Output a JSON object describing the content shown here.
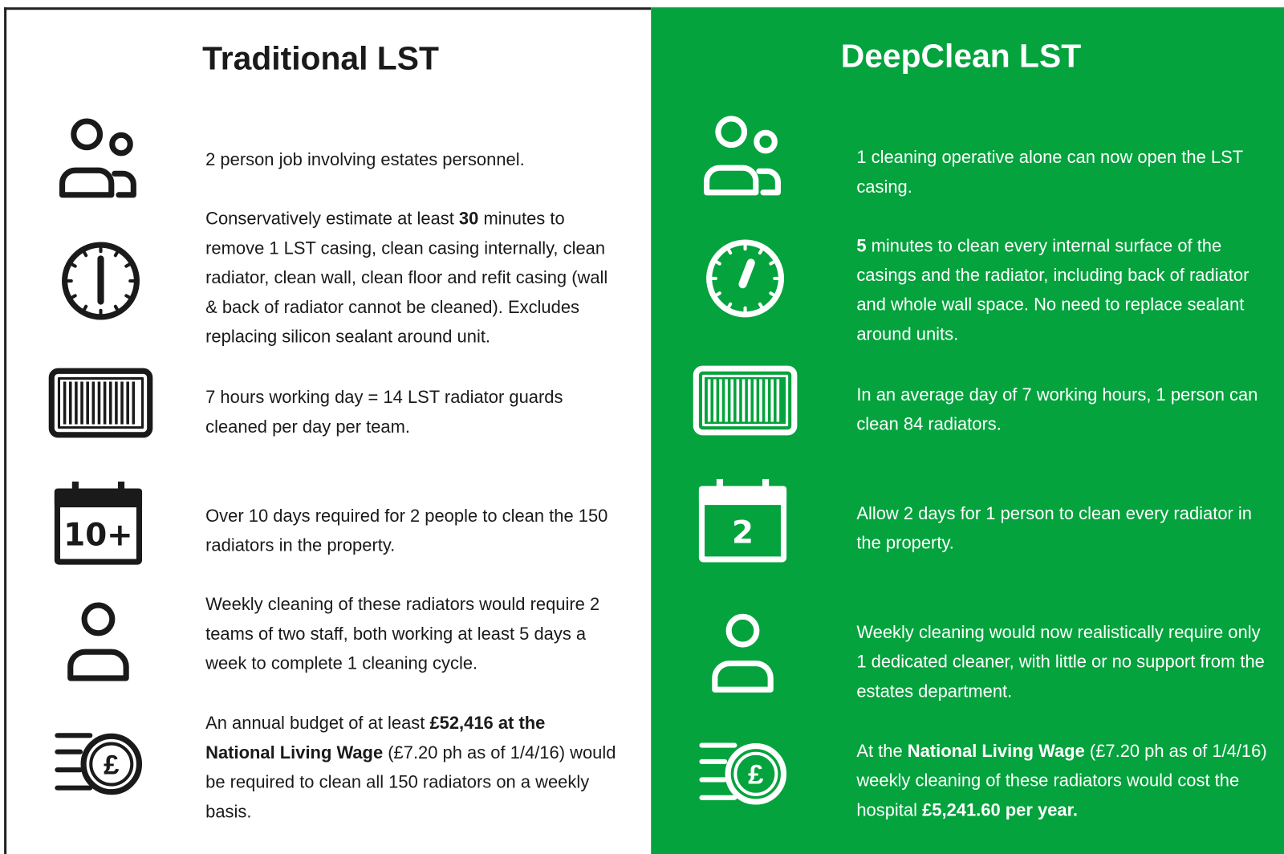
{
  "left": {
    "title": "Traditional LST",
    "rows": [
      {
        "text": [
          "2 person job involving estates personnel."
        ]
      },
      {
        "text": [
          "Conservatively estimate at least ",
          {
            "bold": "30"
          },
          " minutes to remove 1 LST casing, clean casing internally, clean radiator, clean wall, clean floor and refit casing (wall & back of radiator cannot be cleaned). Excludes replacing silicon sealant around unit."
        ]
      },
      {
        "text": [
          "7 hours working day = 14 LST radiator guards cleaned per day per team."
        ]
      },
      {
        "text": [
          "Over 10 days required for 2 people to clean the 150 radiators in the property."
        ],
        "icon_text": "10+"
      },
      {
        "text": [
          "Weekly cleaning of these radiators would require 2 teams of two staff, both working at least 5 days a week to complete 1 cleaning cycle."
        ]
      },
      {
        "text": [
          "An annual budget of at least ",
          {
            "bold": "£52,416 at the National Living Wage"
          },
          " (£7.20 ph as of 1/4/16) would be required to clean all 150 radiators on a weekly basis."
        ],
        "icon_text": "£"
      }
    ]
  },
  "right": {
    "title": "DeepClean LST",
    "rows": [
      {
        "text": [
          "1 cleaning operative alone can now open the LST casing."
        ]
      },
      {
        "text": [
          {
            "bold": "5"
          },
          " minutes to clean every internal surface of the casings and the radiator, including back of radiator and whole wall space. No need to replace sealant around units."
        ]
      },
      {
        "text": [
          "In an average day of 7 working hours, 1 person can clean 84 radiators."
        ]
      },
      {
        "text": [
          "Allow 2 days for 1 person to clean every radiator in the property."
        ],
        "icon_text": "2"
      },
      {
        "text": [
          "Weekly cleaning would now realistically require only 1 dedicated cleaner, with little or no support from the estates department."
        ]
      },
      {
        "text": [
          "At the ",
          {
            "bold": "National Living Wage"
          },
          " (£7.20 ph as of 1/4/16) weekly cleaning of these radiators would cost the hospital ",
          {
            "bold": "£5,241.60 per year."
          }
        ],
        "icon_text": "£"
      }
    ]
  }
}
